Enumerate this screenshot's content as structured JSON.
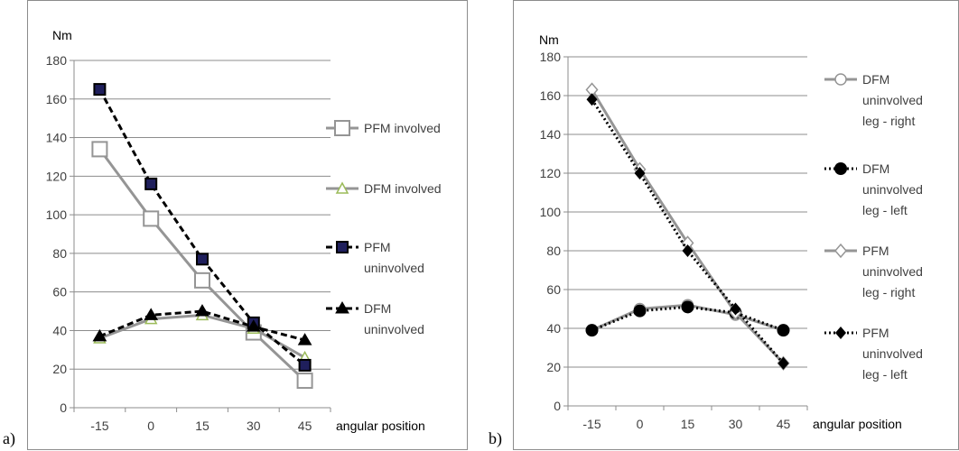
{
  "panel_labels": [
    "a)",
    "b)"
  ],
  "chart_data": [
    {
      "type": "line",
      "ylabel": "Nm",
      "xlabel": "angular position",
      "x": [
        -15,
        0,
        15,
        30,
        45
      ],
      "ylim": [
        0,
        180
      ],
      "yticks": [
        0,
        20,
        40,
        60,
        80,
        100,
        120,
        140,
        160,
        180
      ],
      "grid": true,
      "legend": "right",
      "series": [
        {
          "name": "PFM involved",
          "values": [
            134,
            98,
            66,
            39,
            14
          ],
          "color": "#959595",
          "dash": "solid",
          "marker": "open-square",
          "marker_color": "#959595"
        },
        {
          "name": "DFM involved",
          "values": [
            36,
            46,
            48,
            41,
            26
          ],
          "color": "#959595",
          "dash": "solid",
          "marker": "open-triangle",
          "marker_color": "#9bbb59"
        },
        {
          "name": "PFM uninvolved",
          "values": [
            165,
            116,
            77,
            44,
            22
          ],
          "color": "#000000",
          "dash": "dashed",
          "marker": "filled-square",
          "marker_color": "#000000",
          "marker_inner": "#1f1f5c"
        },
        {
          "name": "DFM uninvolved",
          "values": [
            37,
            48,
            50,
            42,
            35
          ],
          "color": "#000000",
          "dash": "dashed",
          "marker": "filled-triangle",
          "marker_color": "#000000"
        }
      ],
      "legend_lines": [
        [
          "PFM involved"
        ],
        [
          "DFM involved"
        ],
        [
          "PFM",
          "uninvolved"
        ],
        [
          "DFM",
          "uninvolved"
        ]
      ]
    },
    {
      "type": "line",
      "ylabel": "Nm",
      "xlabel": "angular position",
      "x": [
        -15,
        0,
        15,
        30,
        45
      ],
      "ylim": [
        0,
        180
      ],
      "yticks": [
        0,
        20,
        40,
        60,
        80,
        100,
        120,
        140,
        160,
        180
      ],
      "grid": true,
      "legend": "right",
      "series": [
        {
          "name": "DFM uninvolved leg - right",
          "values": [
            39,
            50,
            52,
            47,
            39
          ],
          "color": "#959595",
          "dash": "solid",
          "marker": "open-circle",
          "marker_color": "#959595"
        },
        {
          "name": "DFM uninvolved leg - left",
          "values": [
            39,
            49,
            51,
            48,
            39
          ],
          "color": "#000000",
          "dash": "dotted",
          "marker": "filled-circle",
          "marker_color": "#000000"
        },
        {
          "name": "PFM uninvolved leg - right",
          "values": [
            163,
            122,
            84,
            48,
            22
          ],
          "color": "#959595",
          "dash": "solid",
          "marker": "open-diamond",
          "marker_color": "#959595"
        },
        {
          "name": "PFM uninvolved leg - left",
          "values": [
            158,
            120,
            80,
            50,
            22
          ],
          "color": "#000000",
          "dash": "dotted",
          "marker": "filled-diamond",
          "marker_color": "#000000"
        }
      ],
      "legend_lines": [
        [
          "DFM",
          "uninvolved",
          "leg - right"
        ],
        [
          "DFM",
          "uninvolved",
          "leg - left"
        ],
        [
          "PFM",
          "uninvolved",
          "leg - right"
        ],
        [
          "PFM",
          "uninvolved",
          "leg - left"
        ]
      ]
    }
  ]
}
